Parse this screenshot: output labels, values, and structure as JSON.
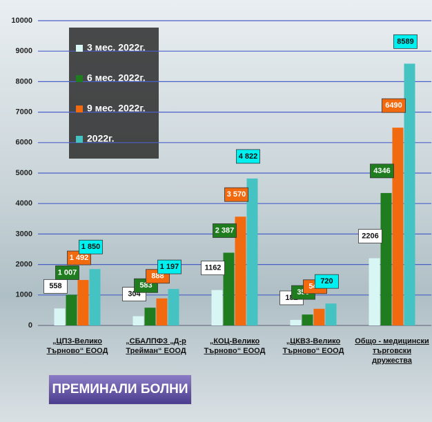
{
  "chart_data": {
    "type": "bar",
    "title": "ПРЕМИНАЛИ БОЛНИ",
    "categories": [
      "„ЦПЗ-Велико\nТърново“ ЕООД",
      "„СБАЛПФЗ „Д-р\nТрейман“ ЕООД",
      "„КОЦ-Велико\nТърново“ ЕООД",
      "„ЦКВЗ-Велико\nТърново“ ЕООД",
      "Общо - медицински\nтърговски дружества"
    ],
    "series": [
      {
        "name": "3 мес. 2022г.",
        "color": "#d8f6f4",
        "values": [
          558,
          304,
          1162,
          182,
          2206
        ]
      },
      {
        "name": "6 мес. 2022г.",
        "color": "#1f7d1f",
        "values": [
          1007,
          583,
          2387,
          359,
          4346
        ],
        "value_labels": [
          "1 007",
          "583",
          "2 387",
          "359",
          "4346"
        ]
      },
      {
        "name": "9 мес. 2022г.",
        "color": "#f26a10",
        "values": [
          1492,
          888,
          3570,
          548,
          6490
        ],
        "value_labels": [
          "1 492",
          "888",
          "3 570",
          "548",
          "6490"
        ]
      },
      {
        "name": "2022г.",
        "color": "#45c2c2",
        "values": [
          1850,
          1197,
          4822,
          720,
          8589
        ],
        "value_labels": [
          "1 850",
          "1 197",
          "4 822",
          "720",
          "8589"
        ]
      }
    ],
    "ylim": [
      0,
      10000
    ],
    "yticks": [
      0,
      1000,
      2000,
      3000,
      4000,
      5000,
      6000,
      7000,
      8000,
      9000,
      10000
    ],
    "grid": true
  }
}
